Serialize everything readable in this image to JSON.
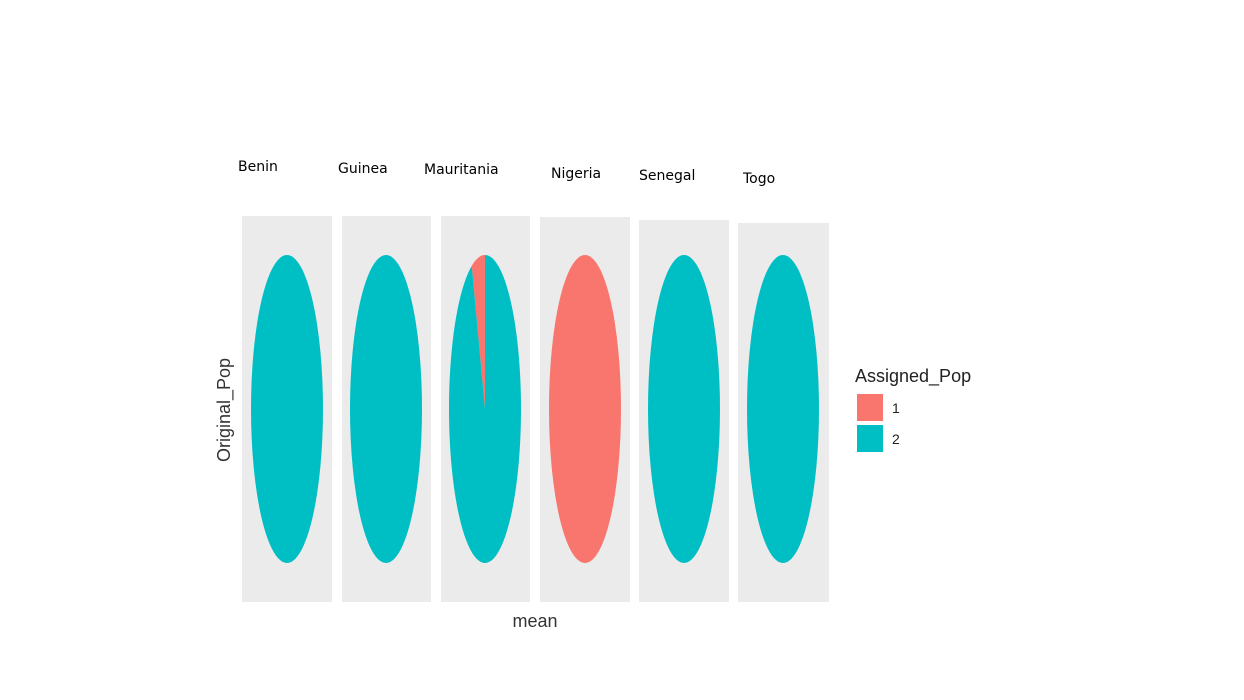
{
  "chart_data": {
    "type": "pie",
    "facet_by": "Original_Pop",
    "xlabel": "mean",
    "ylabel": "Original_Pop",
    "legend": {
      "title": "Assigned_Pop",
      "placement": "right",
      "entries": [
        {
          "label": "1",
          "color": "#F8766D"
        },
        {
          "label": "2",
          "color": "#00BFC4"
        }
      ]
    },
    "facets": [
      {
        "name": "Benin",
        "slices": [
          {
            "group": "1",
            "value": 0.0
          },
          {
            "group": "2",
            "value": 1.0
          }
        ]
      },
      {
        "name": "Guinea",
        "slices": [
          {
            "group": "1",
            "value": 0.0
          },
          {
            "group": "2",
            "value": 1.0
          }
        ]
      },
      {
        "name": "Mauritania",
        "slices": [
          {
            "group": "1",
            "value": 0.06
          },
          {
            "group": "2",
            "value": 0.94
          }
        ]
      },
      {
        "name": "Nigeria",
        "slices": [
          {
            "group": "1",
            "value": 1.0
          },
          {
            "group": "2",
            "value": 0.0
          }
        ]
      },
      {
        "name": "Senegal",
        "slices": [
          {
            "group": "1",
            "value": 0.0
          },
          {
            "group": "2",
            "value": 1.0
          }
        ]
      },
      {
        "name": "Togo",
        "slices": [
          {
            "group": "1",
            "value": 0.0
          },
          {
            "group": "2",
            "value": 1.0
          }
        ]
      }
    ],
    "panel_background": "#EBEBEB",
    "grid": false
  }
}
